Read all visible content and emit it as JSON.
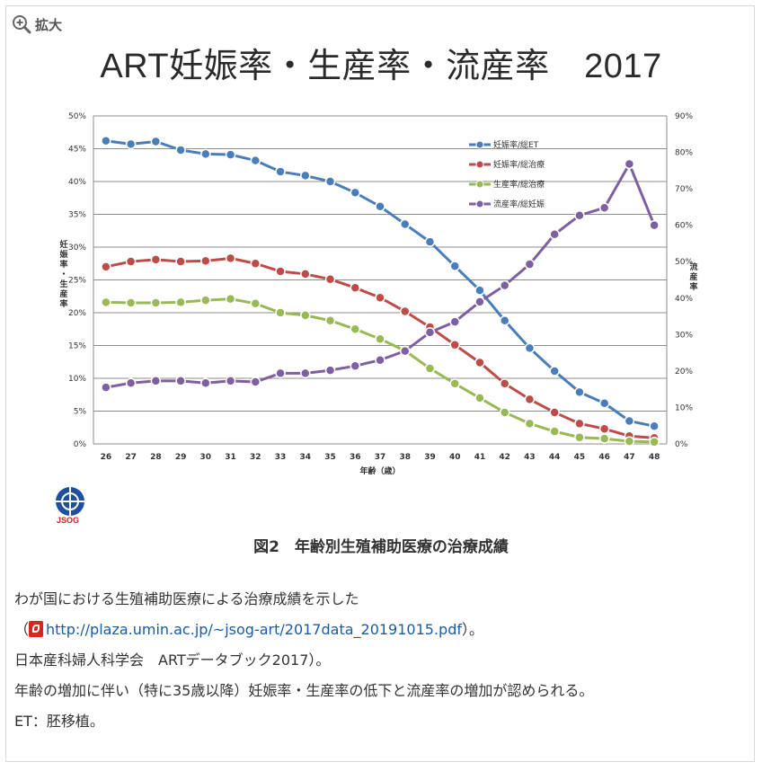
{
  "zoom": {
    "label": "拡大",
    "icon": "zoom-in-icon"
  },
  "chart_data": {
    "type": "line",
    "title": "ART妊娠率・生産率・流産率　2017",
    "xlabel": "年齢（歳）",
    "ylabel": "妊娠率・生産率",
    "y2label": "流産率",
    "categories": [
      "26",
      "27",
      "28",
      "29",
      "30",
      "31",
      "32",
      "33",
      "34",
      "35",
      "36",
      "37",
      "38",
      "39",
      "40",
      "41",
      "42",
      "43",
      "44",
      "45",
      "46",
      "47",
      "48"
    ],
    "ylim": [
      0,
      50
    ],
    "y2lim": [
      0,
      90
    ],
    "yticks": [
      "0%",
      "5%",
      "10%",
      "15%",
      "20%",
      "25%",
      "30%",
      "35%",
      "40%",
      "45%",
      "50%"
    ],
    "y2ticks": [
      "0%",
      "10%",
      "20%",
      "30%",
      "40%",
      "50%",
      "60%",
      "70%",
      "80%",
      "90%"
    ],
    "grid": true,
    "legend_position": "top-right-inside",
    "series": [
      {
        "name": "妊娠率/総ET",
        "color": "#4a7ebb",
        "axis": "left",
        "values": [
          46.2,
          45.7,
          46.1,
          44.8,
          44.2,
          44.1,
          43.2,
          41.5,
          40.9,
          40.0,
          38.3,
          36.2,
          33.5,
          30.8,
          27.1,
          23.4,
          18.8,
          14.6,
          11.1,
          7.9,
          6.2,
          3.5,
          2.7
        ]
      },
      {
        "name": "妊娠率/総治療",
        "color": "#be4b48",
        "axis": "left",
        "values": [
          27.0,
          27.8,
          28.1,
          27.8,
          27.9,
          28.3,
          27.5,
          26.3,
          25.9,
          25.1,
          23.8,
          22.3,
          20.2,
          17.8,
          15.1,
          12.4,
          9.2,
          6.8,
          4.8,
          3.1,
          2.3,
          1.2,
          0.9
        ]
      },
      {
        "name": "生産率/総治療",
        "color": "#98b954",
        "axis": "left",
        "values": [
          21.6,
          21.5,
          21.5,
          21.6,
          21.9,
          22.1,
          21.4,
          20.0,
          19.6,
          18.8,
          17.5,
          16.0,
          14.2,
          11.5,
          9.2,
          7.0,
          4.8,
          3.1,
          1.9,
          1.0,
          0.8,
          0.4,
          0.3
        ]
      },
      {
        "name": "流産率/総妊娠",
        "color": "#7d60a0",
        "axis": "right",
        "values": [
          15.5,
          16.7,
          17.3,
          17.3,
          16.7,
          17.3,
          17.0,
          19.4,
          19.4,
          20.2,
          21.4,
          23.0,
          25.5,
          30.6,
          33.5,
          39.0,
          43.5,
          49.3,
          57.5,
          62.7,
          64.8,
          76.8,
          60.0
        ]
      }
    ]
  },
  "logo": {
    "text": "JSOG"
  },
  "caption": "図2　年齢別生殖補助医療の治療成績",
  "desc": {
    "line1": "わが国における生殖補助医療による治療成績を示した",
    "line2_open": "（",
    "link": "http://plaza.umin.ac.jp/~jsog-art/2017data_20191015.pdf",
    "line2_close": "）。",
    "line3": "日本産科婦人科学会　ARTデータブック2017）。",
    "line4": "年齢の増加に伴い（特に35歳以降）妊娠率・生産率の低下と流産率の増加が認められる。",
    "line5": "ET：胚移植。"
  }
}
